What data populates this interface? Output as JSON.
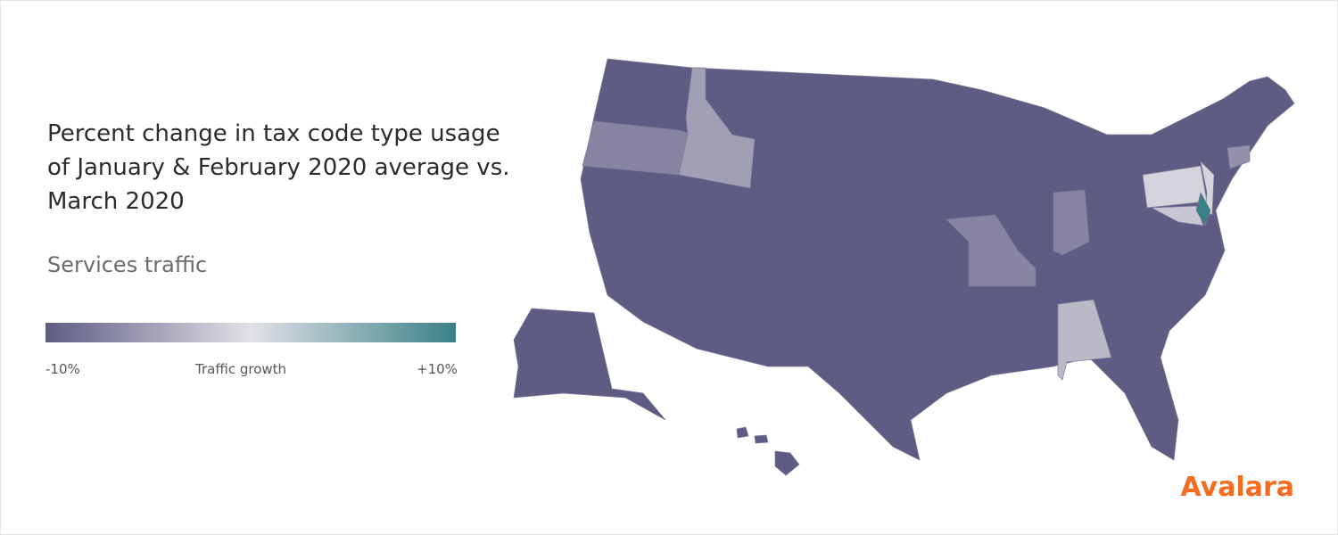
{
  "title": "Percent change in tax code type usage of January & February 2020 average vs. March 2020",
  "subtitle": "Services traffic",
  "legend": {
    "title": "Traffic growth",
    "min": {
      "value": -10,
      "label": "-10%"
    },
    "max": {
      "value": 10,
      "label": "+10%"
    },
    "colors": [
      "#5e5c82",
      "#e2e1e6",
      "#3a8086"
    ]
  },
  "regions": [
    -10,
    -7,
    -5,
    -7,
    -7,
    -3,
    -1,
    -1,
    10,
    -6,
    -2,
    -10,
    -10
  ],
  "brand": "Avalara"
}
